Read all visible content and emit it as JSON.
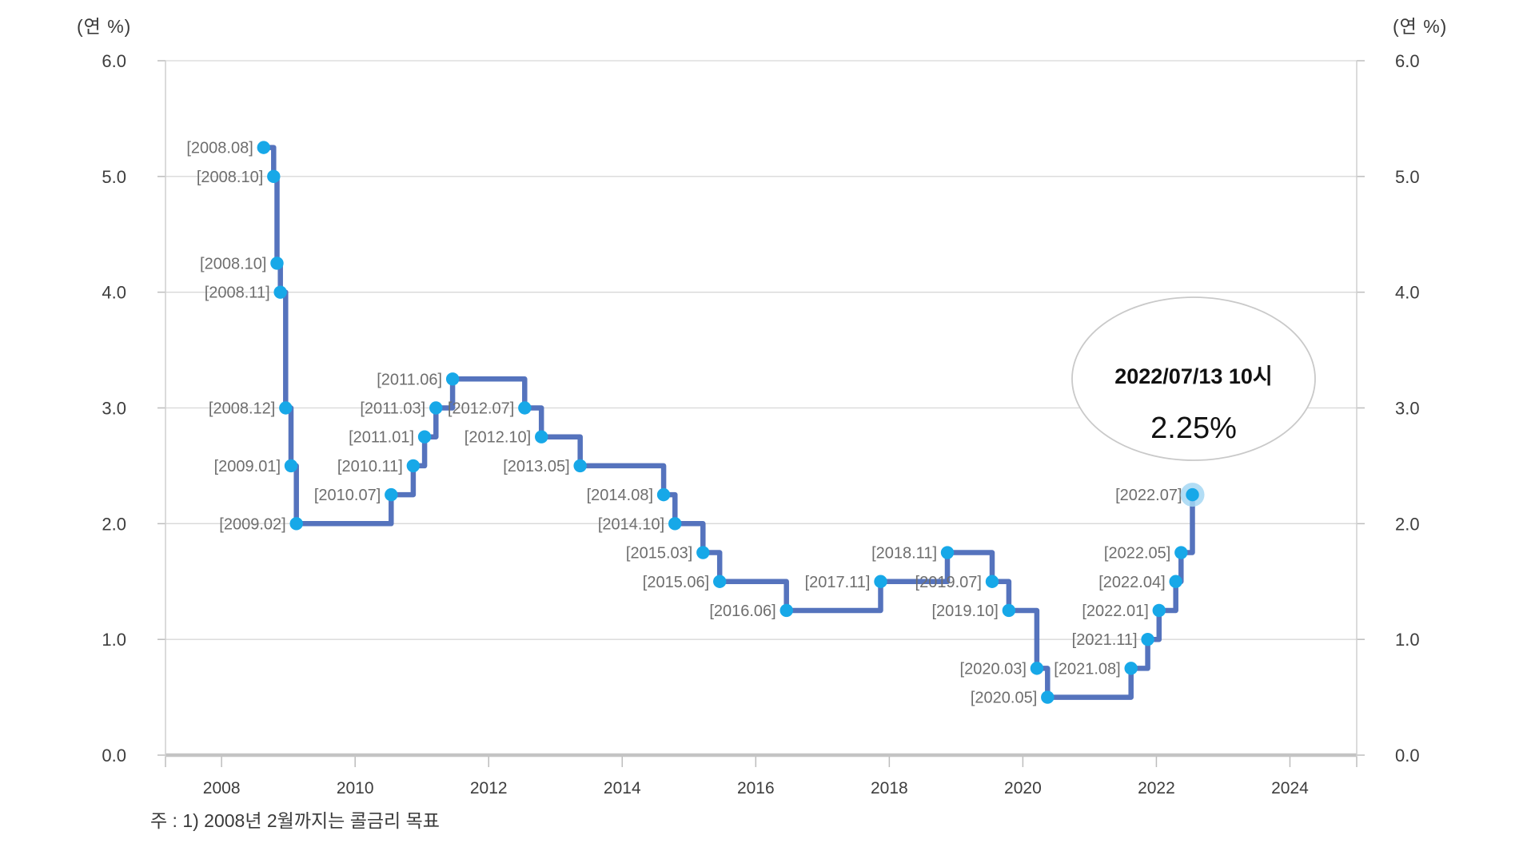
{
  "chart": {
    "unit_label_left": "(연 %)",
    "unit_label_right": "(연 %)",
    "footnote": "주 : 1) 2008년 2월까지는 콜금리 목표"
  },
  "chart_data": {
    "type": "line",
    "step": true,
    "title": "",
    "xlabel": "",
    "ylabel_left": "(연 %)",
    "ylabel_right": "(연 %)",
    "xlim": [
      2007.16,
      2025.0
    ],
    "ylim": [
      0.0,
      6.0
    ],
    "x_ticks": [
      2008,
      2010,
      2012,
      2014,
      2016,
      2018,
      2020,
      2022,
      2024
    ],
    "y_ticks": [
      0.0,
      1.0,
      2.0,
      3.0,
      4.0,
      5.0,
      6.0
    ],
    "grid": "horizontal",
    "legend": "none",
    "points": [
      {
        "label": "[2008.08]",
        "x": 2008.63,
        "y": 5.25
      },
      {
        "label": "[2008.10]",
        "x": 2008.78,
        "y": 5.0
      },
      {
        "label": "[2008.10]",
        "x": 2008.83,
        "y": 4.25
      },
      {
        "label": "[2008.11]",
        "x": 2008.88,
        "y": 4.0
      },
      {
        "label": "[2008.12]",
        "x": 2008.96,
        "y": 3.0
      },
      {
        "label": "[2009.01]",
        "x": 2009.04,
        "y": 2.5
      },
      {
        "label": "[2009.02]",
        "x": 2009.12,
        "y": 2.0
      },
      {
        "label": "[2010.07]",
        "x": 2010.54,
        "y": 2.25
      },
      {
        "label": "[2010.11]",
        "x": 2010.87,
        "y": 2.5
      },
      {
        "label": "[2011.01]",
        "x": 2011.04,
        "y": 2.75
      },
      {
        "label": "[2011.03]",
        "x": 2011.21,
        "y": 3.0
      },
      {
        "label": "[2011.06]",
        "x": 2011.46,
        "y": 3.25
      },
      {
        "label": "[2012.07]",
        "x": 2012.54,
        "y": 3.0
      },
      {
        "label": "[2012.10]",
        "x": 2012.79,
        "y": 2.75
      },
      {
        "label": "[2013.05]",
        "x": 2013.37,
        "y": 2.5
      },
      {
        "label": "[2014.08]",
        "x": 2014.62,
        "y": 2.25
      },
      {
        "label": "[2014.10]",
        "x": 2014.79,
        "y": 2.0
      },
      {
        "label": "[2015.03]",
        "x": 2015.21,
        "y": 1.75
      },
      {
        "label": "[2015.06]",
        "x": 2015.46,
        "y": 1.5
      },
      {
        "label": "[2016.06]",
        "x": 2016.46,
        "y": 1.25
      },
      {
        "label": "[2017.11]",
        "x": 2017.87,
        "y": 1.5
      },
      {
        "label": "[2018.11]",
        "x": 2018.87,
        "y": 1.75
      },
      {
        "label": "[2019.07]",
        "x": 2019.54,
        "y": 1.5
      },
      {
        "label": "[2019.10]",
        "x": 2019.79,
        "y": 1.25
      },
      {
        "label": "[2020.03]",
        "x": 2020.21,
        "y": 0.75
      },
      {
        "label": "[2020.05]",
        "x": 2020.37,
        "y": 0.5
      },
      {
        "label": "[2021.08]",
        "x": 2021.62,
        "y": 0.75
      },
      {
        "label": "[2021.11]",
        "x": 2021.87,
        "y": 1.0
      },
      {
        "label": "[2022.01]",
        "x": 2022.04,
        "y": 1.25
      },
      {
        "label": "[2022.04]",
        "x": 2022.29,
        "y": 1.5
      },
      {
        "label": "[2022.05]",
        "x": 2022.37,
        "y": 1.75
      },
      {
        "label": "[2022.07]",
        "x": 2022.54,
        "y": 2.25
      }
    ],
    "highlight_last": true,
    "annotation": {
      "line1": "2022/07/13 10시",
      "line2": "2.25%"
    },
    "colors": {
      "line": "#5573bd",
      "marker": "#17a8e8",
      "halo": "#a4d7f3",
      "point_label": "#6e6e6e",
      "grid": "#d8d8d8",
      "axis_border": "#cfcfcf",
      "axis_bottom": "#c4c4c4",
      "tick": "#bdbdbd",
      "tick_label": "#3d3d3d",
      "callout_border": "#c9c9c9",
      "callout_text": "#111111"
    }
  }
}
